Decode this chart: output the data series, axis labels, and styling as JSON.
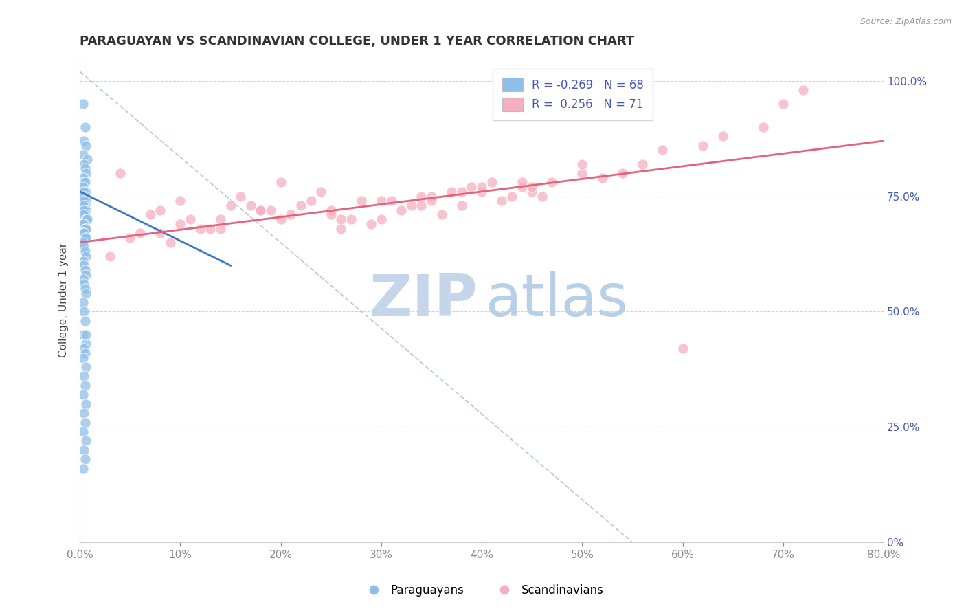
{
  "title": "PARAGUAYAN VS SCANDINAVIAN COLLEGE, UNDER 1 YEAR CORRELATION CHART",
  "source": "Source: ZipAtlas.com",
  "ylabel": "College, Under 1 year",
  "ytick_values": [
    0.0,
    0.25,
    0.5,
    0.75,
    1.0
  ],
  "ytick_labels_right": [
    "0%",
    "25.0%",
    "50.0%",
    "75.0%",
    "100.0%"
  ],
  "xmin": 0.0,
  "xmax": 0.8,
  "ymin": 0.0,
  "ymax": 1.05,
  "paraguayan_color": "#8fbfe8",
  "scandinavian_color": "#f4afc0",
  "paraguayan_line_color": "#3a78c9",
  "scandinavian_line_color": "#e8607a",
  "dashed_line_color": "#aabbd4",
  "title_color": "#333333",
  "title_fontsize": 13,
  "axis_color": "#4455bb",
  "grid_color": "#d0d0e8",
  "watermark_zip_color": "#c5d5ea",
  "watermark_atlas_color": "#b8cfe8",
  "legend_R1": "-0.269",
  "legend_N1": "68",
  "legend_R2": "0.256",
  "legend_N2": "71",
  "blue_x": [
    0.003,
    0.005,
    0.004,
    0.006,
    0.003,
    0.007,
    0.004,
    0.005,
    0.006,
    0.003,
    0.004,
    0.005,
    0.003,
    0.006,
    0.004,
    0.005,
    0.003,
    0.006,
    0.004,
    0.005,
    0.003,
    0.006,
    0.004,
    0.005,
    0.003,
    0.006,
    0.007,
    0.004,
    0.003,
    0.005,
    0.006,
    0.003,
    0.004,
    0.005,
    0.006,
    0.003,
    0.004,
    0.005,
    0.006,
    0.003,
    0.004,
    0.005,
    0.006,
    0.003,
    0.004,
    0.005,
    0.006,
    0.003,
    0.004,
    0.005,
    0.003,
    0.006,
    0.004,
    0.005,
    0.003,
    0.006,
    0.004,
    0.005,
    0.003,
    0.006,
    0.004,
    0.005,
    0.003,
    0.006,
    0.004,
    0.005,
    0.003,
    0.006
  ],
  "blue_y": [
    0.95,
    0.9,
    0.87,
    0.86,
    0.84,
    0.83,
    0.82,
    0.81,
    0.8,
    0.79,
    0.78,
    0.78,
    0.77,
    0.76,
    0.76,
    0.75,
    0.75,
    0.74,
    0.74,
    0.73,
    0.73,
    0.72,
    0.72,
    0.71,
    0.71,
    0.7,
    0.7,
    0.69,
    0.69,
    0.68,
    0.68,
    0.67,
    0.67,
    0.66,
    0.66,
    0.65,
    0.64,
    0.63,
    0.62,
    0.61,
    0.6,
    0.59,
    0.58,
    0.57,
    0.56,
    0.55,
    0.54,
    0.52,
    0.5,
    0.48,
    0.45,
    0.43,
    0.42,
    0.41,
    0.4,
    0.38,
    0.36,
    0.34,
    0.32,
    0.3,
    0.28,
    0.26,
    0.24,
    0.22,
    0.2,
    0.18,
    0.16,
    0.45
  ],
  "pink_x": [
    0.04,
    0.08,
    0.1,
    0.12,
    0.14,
    0.16,
    0.18,
    0.2,
    0.22,
    0.24,
    0.26,
    0.28,
    0.3,
    0.32,
    0.34,
    0.36,
    0.38,
    0.4,
    0.42,
    0.44,
    0.05,
    0.1,
    0.15,
    0.2,
    0.25,
    0.3,
    0.35,
    0.4,
    0.45,
    0.5,
    0.07,
    0.13,
    0.19,
    0.23,
    0.27,
    0.33,
    0.37,
    0.41,
    0.46,
    0.52,
    0.06,
    0.11,
    0.17,
    0.21,
    0.29,
    0.31,
    0.39,
    0.43,
    0.47,
    0.54,
    0.09,
    0.14,
    0.18,
    0.26,
    0.35,
    0.38,
    0.44,
    0.5,
    0.58,
    0.64,
    0.03,
    0.08,
    0.25,
    0.34,
    0.45,
    0.56,
    0.62,
    0.68,
    0.7,
    0.72,
    0.6
  ],
  "pink_y": [
    0.8,
    0.72,
    0.74,
    0.68,
    0.7,
    0.75,
    0.72,
    0.78,
    0.73,
    0.76,
    0.68,
    0.74,
    0.7,
    0.72,
    0.75,
    0.71,
    0.73,
    0.76,
    0.74,
    0.77,
    0.66,
    0.69,
    0.73,
    0.7,
    0.72,
    0.74,
    0.75,
    0.77,
    0.76,
    0.8,
    0.71,
    0.68,
    0.72,
    0.74,
    0.7,
    0.73,
    0.76,
    0.78,
    0.75,
    0.79,
    0.67,
    0.7,
    0.73,
    0.71,
    0.69,
    0.74,
    0.77,
    0.75,
    0.78,
    0.8,
    0.65,
    0.68,
    0.72,
    0.7,
    0.74,
    0.76,
    0.78,
    0.82,
    0.85,
    0.88,
    0.62,
    0.67,
    0.71,
    0.73,
    0.77,
    0.82,
    0.86,
    0.9,
    0.95,
    0.98,
    0.42
  ],
  "blue_line_x0": 0.0,
  "blue_line_y0": 0.76,
  "blue_line_x1": 0.15,
  "blue_line_y1": 0.6,
  "pink_line_x0": 0.0,
  "pink_line_y0": 0.65,
  "pink_line_x1": 0.8,
  "pink_line_y1": 0.87,
  "dash_line_x0": 0.0,
  "dash_line_y0": 1.02,
  "dash_line_x1": 0.55,
  "dash_line_y1": 0.0
}
